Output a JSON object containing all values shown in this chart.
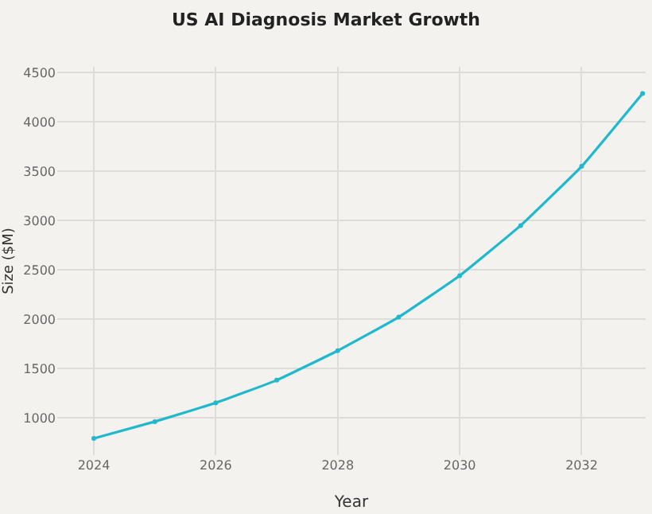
{
  "chart_data": {
    "type": "line",
    "title": "US AI Diagnosis Market Growth",
    "xlabel": "Year",
    "ylabel": "Size ($M)",
    "x": [
      2024,
      2025,
      2026,
      2027,
      2028,
      2029,
      2030,
      2031,
      2032,
      2033
    ],
    "series": [
      {
        "color": "#1fb8cd",
        "values": [
          790,
          960,
          1150,
          1380,
          1680,
          2020,
          2440,
          2950,
          3550,
          4290
        ]
      }
    ],
    "xlim": [
      2023.4,
      2033.05
    ],
    "xticks": [
      2024,
      2026,
      2028,
      2030,
      2032
    ],
    "ylim": [
      620,
      4560
    ],
    "yticks": [
      1000,
      1500,
      2000,
      2500,
      3000,
      3500,
      4000,
      4500
    ],
    "grid": true,
    "marker": "circle",
    "line_style": "solid"
  }
}
